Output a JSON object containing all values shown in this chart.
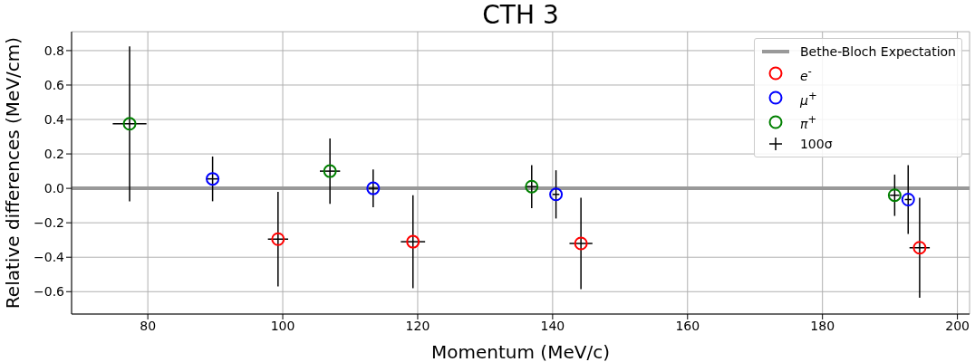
{
  "chart_data": {
    "type": "scatter",
    "title": "CTH 3",
    "xlabel": "Momentum (MeV/c)",
    "ylabel": "Relative differences (MeV/cm)",
    "xlim": [
      68.7,
      201.8
    ],
    "xticks": [
      80,
      100,
      120,
      140,
      160,
      180,
      200
    ],
    "ylim": [
      -0.73,
      0.91
    ],
    "yticks": [
      {
        "value": -0.6,
        "label": "−0.6"
      },
      {
        "value": -0.4,
        "label": "−0.4"
      },
      {
        "value": -0.2,
        "label": "−0.2"
      },
      {
        "value": 0,
        "label": "0.0"
      },
      0.2,
      0.4,
      0.6,
      0.8
    ],
    "grid": true,
    "legend": "top right",
    "marker": "circle",
    "ref_lines": [
      {
        "axis": "y",
        "value": 0,
        "label": "Bethe-Bloch Expectation",
        "color": "#999999"
      }
    ],
    "annotations": [
      "100σ"
    ],
    "series": [
      {
        "name": "e$^{-}$",
        "color": "#ff0000",
        "x": [
          99.3,
          119.3,
          144.2,
          194.4
        ],
        "values": [
          -0.295,
          -0.31,
          -0.32,
          -0.345
        ],
        "errors": [
          0.275,
          0.27,
          0.265,
          0.29
        ],
        "xerrors": [
          1.5,
          1.8,
          1.7,
          1.5
        ]
      },
      {
        "name": "μ$^{+}$",
        "color": "#0000ff",
        "x": [
          89.6,
          113.4,
          140.5,
          192.7
        ],
        "values": [
          0.055,
          0,
          -0.035,
          -0.065
        ],
        "errors": [
          0.13,
          0.11,
          0.14,
          0.2
        ],
        "xerrors": [
          1,
          0.7,
          0.5,
          0.5
        ]
      },
      {
        "name": "π$^{+}$",
        "color": "#008000",
        "x": [
          77.3,
          107,
          136.9,
          190.7
        ],
        "values": [
          0.375,
          0.1,
          0.01,
          -0.04
        ],
        "errors": [
          0.45,
          0.19,
          0.125,
          0.12
        ],
        "xerrors": [
          2.5,
          1.5,
          0.8,
          0.7
        ]
      }
    ]
  }
}
